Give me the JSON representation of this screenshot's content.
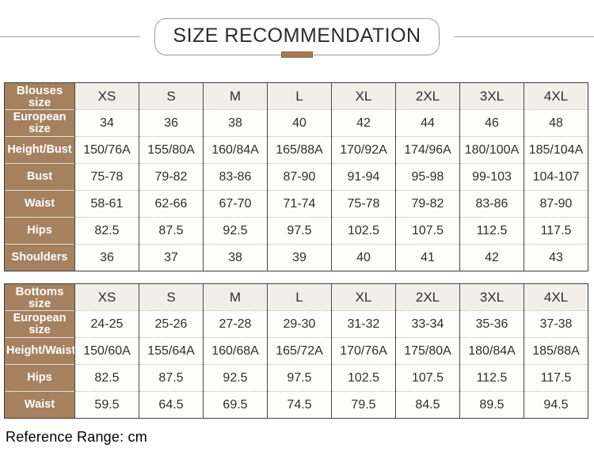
{
  "title": {
    "text": "SIZE RECOMMENDATION"
  },
  "footer": {
    "text": "Reference Range: cm"
  },
  "colors": {
    "row_label_brown": "#a5815f",
    "accent_bar_brown": "#a87950",
    "size_header_bg": "#f2efe9",
    "border_dark": "#4a4a4a",
    "divider_dotted": "#b5b5b5"
  },
  "size_columns": [
    "XS",
    "S",
    "M",
    "L",
    "XL",
    "2XL",
    "3XL",
    "4XL"
  ],
  "blouses_table": {
    "header_label": "Blouses size",
    "rows": [
      {
        "label": "European size",
        "values": [
          "34",
          "36",
          "38",
          "40",
          "42",
          "44",
          "46",
          "48"
        ]
      },
      {
        "label": "Height/Bust",
        "values": [
          "150/76A",
          "155/80A",
          "160/84A",
          "165/88A",
          "170/92A",
          "174/96A",
          "180/100A",
          "185/104A"
        ]
      },
      {
        "label": "Bust",
        "values": [
          "75-78",
          "79-82",
          "83-86",
          "87-90",
          "91-94",
          "95-98",
          "99-103",
          "104-107"
        ]
      },
      {
        "label": "Waist",
        "values": [
          "58-61",
          "62-66",
          "67-70",
          "71-74",
          "75-78",
          "79-82",
          "83-86",
          "87-90"
        ]
      },
      {
        "label": "Hips",
        "values": [
          "82.5",
          "87.5",
          "92.5",
          "97.5",
          "102.5",
          "107.5",
          "112.5",
          "117.5"
        ]
      },
      {
        "label": "Shoulders",
        "values": [
          "36",
          "37",
          "38",
          "39",
          "40",
          "41",
          "42",
          "43"
        ]
      }
    ]
  },
  "bottoms_table": {
    "header_label": "Bottoms size",
    "rows": [
      {
        "label": "European size",
        "values": [
          "24-25",
          "25-26",
          "27-28",
          "29-30",
          "31-32",
          "33-34",
          "35-36",
          "37-38"
        ]
      },
      {
        "label": "Height/Waist",
        "values": [
          "150/60A",
          "155/64A",
          "160/68A",
          "165/72A",
          "170/76A",
          "175/80A",
          "180/84A",
          "185/88A"
        ]
      },
      {
        "label": "Hips",
        "values": [
          "82.5",
          "87.5",
          "92.5",
          "97.5",
          "102.5",
          "107.5",
          "112.5",
          "117.5"
        ]
      },
      {
        "label": "Waist",
        "values": [
          "59.5",
          "64.5",
          "69.5",
          "74.5",
          "79.5",
          "84.5",
          "89.5",
          "94.5"
        ]
      }
    ]
  }
}
